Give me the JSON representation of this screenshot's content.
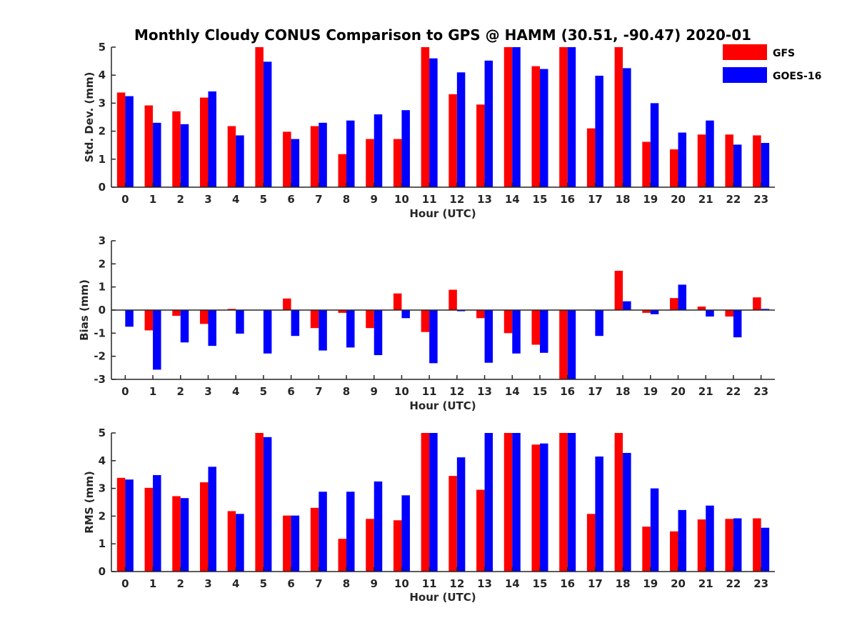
{
  "title": "Monthly Cloudy CONUS Comparison to GPS @ HAMM (30.51, -90.47) 2020-01",
  "legend": [
    {
      "name": "GFS",
      "color": "#ff0000"
    },
    {
      "name": "GOES-16",
      "color": "#0000ff"
    }
  ],
  "chart_data": [
    {
      "type": "bar",
      "xlabel": "Hour (UTC)",
      "ylabel": "Std. Dev. (mm)",
      "ylim": [
        0,
        5
      ],
      "yticks": [
        0,
        1,
        2,
        3,
        4,
        5
      ],
      "categories": [
        "0",
        "1",
        "2",
        "3",
        "4",
        "5",
        "6",
        "7",
        "8",
        "9",
        "10",
        "11",
        "12",
        "13",
        "14",
        "15",
        "16",
        "17",
        "18",
        "19",
        "20",
        "21",
        "22",
        "23"
      ],
      "series": [
        {
          "name": "GFS",
          "color": "#ff0000",
          "values": [
            3.38,
            2.92,
            2.71,
            3.2,
            2.18,
            5.0,
            1.98,
            2.18,
            1.18,
            1.72,
            1.72,
            5.0,
            3.32,
            2.95,
            5.0,
            4.32,
            5.0,
            2.1,
            5.0,
            1.62,
            1.35,
            1.88,
            1.88,
            1.85
          ]
        },
        {
          "name": "GOES-16",
          "color": "#0000ff",
          "values": [
            3.25,
            2.3,
            2.25,
            3.42,
            1.85,
            4.48,
            1.72,
            2.3,
            2.38,
            2.6,
            2.75,
            4.6,
            4.1,
            4.52,
            5.0,
            4.22,
            5.0,
            3.98,
            4.25,
            3.0,
            1.95,
            2.38,
            1.52,
            1.58
          ]
        }
      ]
    },
    {
      "type": "bar",
      "xlabel": "Hour (UTC)",
      "ylabel": "Bias (mm)",
      "ylim": [
        -3,
        3
      ],
      "yticks": [
        -3,
        -2,
        -1,
        0,
        1,
        2,
        3
      ],
      "categories": [
        "0",
        "1",
        "2",
        "3",
        "4",
        "5",
        "6",
        "7",
        "8",
        "9",
        "10",
        "11",
        "12",
        "13",
        "14",
        "15",
        "16",
        "17",
        "18",
        "19",
        "20",
        "21",
        "22",
        "23"
      ],
      "series": [
        {
          "name": "GFS",
          "color": "#ff0000",
          "values": [
            0.0,
            -0.88,
            -0.25,
            -0.6,
            0.05,
            0.0,
            0.5,
            -0.78,
            -0.12,
            -0.78,
            0.72,
            -0.95,
            0.88,
            -0.35,
            -1.0,
            -1.5,
            -3.0,
            -0.02,
            1.7,
            -0.12,
            0.52,
            0.15,
            -0.28,
            0.55
          ]
        },
        {
          "name": "GOES-16",
          "color": "#0000ff",
          "values": [
            -0.72,
            -2.58,
            -1.4,
            -1.55,
            -1.02,
            -1.88,
            -1.12,
            -1.75,
            -1.62,
            -1.95,
            -0.35,
            -2.3,
            -0.05,
            -2.28,
            -1.88,
            -1.85,
            -3.0,
            -1.12,
            0.38,
            -0.18,
            1.1,
            -0.28,
            -1.18,
            0.05
          ]
        }
      ]
    },
    {
      "type": "bar",
      "xlabel": "Hour (UTC)",
      "ylabel": "RMS (mm)",
      "ylim": [
        0,
        5
      ],
      "yticks": [
        0,
        1,
        2,
        3,
        4,
        5
      ],
      "categories": [
        "0",
        "1",
        "2",
        "3",
        "4",
        "5",
        "6",
        "7",
        "8",
        "9",
        "10",
        "11",
        "12",
        "13",
        "14",
        "15",
        "16",
        "17",
        "18",
        "19",
        "20",
        "21",
        "22",
        "23"
      ],
      "series": [
        {
          "name": "GFS",
          "color": "#ff0000",
          "values": [
            3.38,
            3.02,
            2.72,
            3.22,
            2.18,
            5.0,
            2.02,
            2.3,
            1.18,
            1.9,
            1.85,
            5.0,
            3.45,
            2.95,
            5.0,
            4.58,
            5.0,
            2.08,
            5.0,
            1.62,
            1.45,
            1.88,
            1.9,
            1.92
          ]
        },
        {
          "name": "GOES-16",
          "color": "#0000ff",
          "values": [
            3.32,
            3.48,
            2.65,
            3.78,
            2.08,
            4.85,
            2.02,
            2.88,
            2.88,
            3.25,
            2.75,
            5.0,
            4.12,
            5.0,
            5.0,
            4.62,
            5.0,
            4.15,
            4.28,
            3.0,
            2.22,
            2.38,
            1.92,
            1.58
          ]
        }
      ]
    }
  ]
}
